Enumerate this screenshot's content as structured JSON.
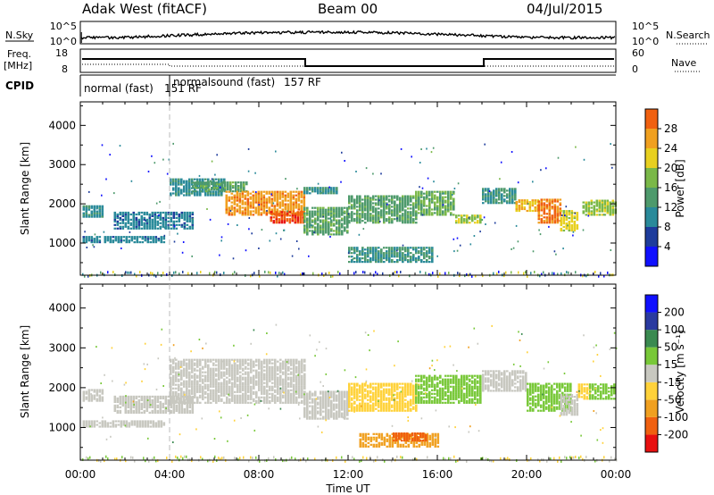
{
  "header": {
    "station": "Adak West (fitACF)",
    "beam": "Beam 00",
    "date": "04/Jul/2015"
  },
  "panels": {
    "nsky": {
      "left_label": "N.Sky",
      "right_label": "N.Search",
      "left_ticks": [
        "10^5",
        "10^0"
      ],
      "right_ticks": [
        "10^5",
        "10^0"
      ]
    },
    "freq": {
      "left_label_1": "Freq.",
      "left_label_2": "[MHz]",
      "right_label": "Nave",
      "left_ticks": [
        "18",
        "8"
      ],
      "right_ticks": [
        "60",
        "0"
      ]
    },
    "cpid": {
      "label": "CPID",
      "segments": [
        {
          "name": "normal (fast)",
          "code": "151 RF"
        },
        {
          "name": "normalsound (fast)",
          "code": "157 RF"
        }
      ]
    }
  },
  "colors": {
    "power_scale": [
      "#1010ff",
      "#1e3c9c",
      "#2a8a9a",
      "#4e9a6c",
      "#7ab848",
      "#e8d020",
      "#f0a020",
      "#f06010",
      "#e81010"
    ],
    "velocity_scale": [
      "#e81010",
      "#f06010",
      "#f0a020",
      "#ffd23a",
      "#c8c8c0",
      "#78c838",
      "#3a8a50",
      "#2a3aa0",
      "#1010ff"
    ]
  },
  "chart_data": [
    {
      "type": "heatmap",
      "name": "power",
      "xlabel": "Time UT",
      "ylabel": "Slant Range [km]",
      "xlim": [
        0,
        24
      ],
      "ylim": [
        180,
        4600
      ],
      "yticks": [
        1000,
        2000,
        3000,
        4000
      ],
      "xticks": [
        "00:00",
        "04:00",
        "08:00",
        "12:00",
        "16:00",
        "20:00",
        "00:00"
      ],
      "colorbar": {
        "label": "Power [dB]",
        "ticks": [
          "4",
          "8",
          "12",
          "16",
          "20",
          "24",
          "28"
        ],
        "range": [
          0,
          30
        ]
      },
      "bands": [
        {
          "t": [
            0.1,
            1.0
          ],
          "r": [
            1650,
            1950
          ],
          "v": 9
        },
        {
          "t": [
            0.1,
            3.8
          ],
          "r": [
            1000,
            1150
          ],
          "v": 8
        },
        {
          "t": [
            1.5,
            5.0
          ],
          "r": [
            1350,
            1800
          ],
          "v": 8
        },
        {
          "t": [
            4.0,
            6.5
          ],
          "r": [
            2200,
            2650
          ],
          "v": 9
        },
        {
          "t": [
            5.0,
            7.5
          ],
          "r": [
            2300,
            2550
          ],
          "v": 12
        },
        {
          "t": [
            6.5,
            10.0
          ],
          "r": [
            1700,
            2300
          ],
          "v": 22
        },
        {
          "t": [
            8.5,
            10.0
          ],
          "r": [
            1500,
            1800
          ],
          "v": 26
        },
        {
          "t": [
            10.0,
            12.0
          ],
          "r": [
            1200,
            1900
          ],
          "v": 12
        },
        {
          "t": [
            10.0,
            11.5
          ],
          "r": [
            2250,
            2400
          ],
          "v": 10
        },
        {
          "t": [
            12.0,
            15.0
          ],
          "r": [
            1500,
            2200
          ],
          "v": 12
        },
        {
          "t": [
            15.0,
            16.8
          ],
          "r": [
            1700,
            2300
          ],
          "v": 14
        },
        {
          "t": [
            16.8,
            18.0
          ],
          "r": [
            1500,
            1700
          ],
          "v": 16
        },
        {
          "t": [
            12.0,
            15.8
          ],
          "r": [
            500,
            900
          ],
          "v": 10
        },
        {
          "t": [
            18.0,
            19.5
          ],
          "r": [
            2000,
            2400
          ],
          "v": 10
        },
        {
          "t": [
            19.5,
            20.5
          ],
          "r": [
            1800,
            2100
          ],
          "v": 20
        },
        {
          "t": [
            20.5,
            21.5
          ],
          "r": [
            1500,
            2100
          ],
          "v": 24
        },
        {
          "t": [
            21.5,
            22.3
          ],
          "r": [
            1300,
            1800
          ],
          "v": 18
        },
        {
          "t": [
            22.5,
            24.0
          ],
          "r": [
            1700,
            2100
          ],
          "v": 16
        }
      ]
    },
    {
      "type": "heatmap",
      "name": "velocity",
      "xlabel": "Time UT",
      "ylabel": "Slant Range [km]",
      "xlim": [
        0,
        24
      ],
      "ylim": [
        180,
        4600
      ],
      "yticks": [
        1000,
        2000,
        3000,
        4000
      ],
      "xticks": [
        "00:00",
        "04:00",
        "08:00",
        "12:00",
        "16:00",
        "20:00",
        "00:00"
      ],
      "colorbar": {
        "label": "Velocity [m s⁻¹]",
        "ticks": [
          "-200",
          "-100",
          "-50",
          "-15",
          "15",
          "50",
          "100",
          "200"
        ]
      },
      "bands": [
        {
          "t": [
            0.1,
            1.0
          ],
          "r": [
            1650,
            1950
          ],
          "v": 0
        },
        {
          "t": [
            0.1,
            3.8
          ],
          "r": [
            1000,
            1150
          ],
          "v": 0
        },
        {
          "t": [
            1.5,
            5.0
          ],
          "r": [
            1350,
            1800
          ],
          "v": 0
        },
        {
          "t": [
            4.0,
            10.0
          ],
          "r": [
            1600,
            2700
          ],
          "v": 0
        },
        {
          "t": [
            10.0,
            12.0
          ],
          "r": [
            1200,
            1900
          ],
          "v": 0
        },
        {
          "t": [
            12.0,
            15.0
          ],
          "r": [
            1400,
            2100
          ],
          "v": -30
        },
        {
          "t": [
            15.0,
            18.0
          ],
          "r": [
            1600,
            2300
          ],
          "v": 30
        },
        {
          "t": [
            12.5,
            16.0
          ],
          "r": [
            500,
            850
          ],
          "v": -60
        },
        {
          "t": [
            14.0,
            15.5
          ],
          "r": [
            650,
            850
          ],
          "v": -160
        },
        {
          "t": [
            18.0,
            20.0
          ],
          "r": [
            1900,
            2400
          ],
          "v": 0
        },
        {
          "t": [
            20.0,
            22.0
          ],
          "r": [
            1400,
            2100
          ],
          "v": 30
        },
        {
          "t": [
            21.5,
            22.3
          ],
          "r": [
            1300,
            1800
          ],
          "v": 0
        },
        {
          "t": [
            22.3,
            22.8
          ],
          "r": [
            1700,
            2100
          ],
          "v": -40
        },
        {
          "t": [
            22.8,
            24.0
          ],
          "r": [
            1700,
            2100
          ],
          "v": 20
        }
      ]
    }
  ]
}
